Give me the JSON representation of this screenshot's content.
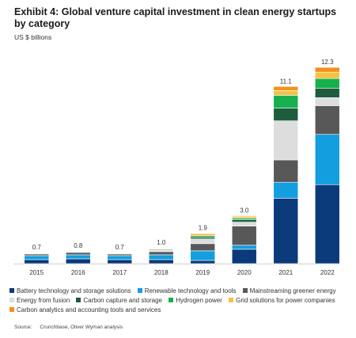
{
  "header": {
    "title": "Exhibit 4: Global venture capital investment in clean energy startups by category",
    "unit": "US $ billions"
  },
  "source": {
    "label": "Source:",
    "text": "Crunchbase, Oliver Wyman analysis"
  },
  "chart_data": {
    "type": "bar",
    "stacked": true,
    "title": "Exhibit 4: Global venture capital investment in clean energy startups by category",
    "ylabel": "US $ billions",
    "ylim": [
      0,
      13
    ],
    "grid": false,
    "legend_position": "bottom",
    "categories": [
      "2015",
      "2016",
      "2017",
      "2018",
      "2019",
      "2020",
      "2021",
      "2022"
    ],
    "totals": [
      "0.7",
      "0.8",
      "0.7",
      "1.0",
      "1.9",
      "3.0",
      "11.1",
      "12.3"
    ],
    "series": [
      {
        "name": "Battery technology and storage solutions",
        "color": "#0a3a7a",
        "values": [
          0.25,
          0.3,
          0.25,
          0.25,
          0.2,
          0.9,
          4.1,
          4.95
        ]
      },
      {
        "name": "Renewable technology and tools",
        "color": "#139ee0",
        "values": [
          0.25,
          0.25,
          0.25,
          0.3,
          0.6,
          0.25,
          1.0,
          3.15
        ]
      },
      {
        "name": "Mainstreaming greener energy",
        "color": "#585858",
        "values": [
          0.1,
          0.15,
          0.1,
          0.2,
          0.45,
          1.2,
          1.4,
          1.8
        ]
      },
      {
        "name": "Energy from fusion",
        "color": "#dddddd",
        "values": [
          0.05,
          0.05,
          0.05,
          0.1,
          0.3,
          0.25,
          2.45,
          0.5
        ]
      },
      {
        "name": "Carbon capture and storage",
        "color": "#1e5c3e",
        "values": [
          0.02,
          0.03,
          0.02,
          0.05,
          0.1,
          0.15,
          0.8,
          0.6
        ]
      },
      {
        "name": "Hydrogen power",
        "color": "#16b04e",
        "values": [
          0.01,
          0.01,
          0.01,
          0.04,
          0.1,
          0.1,
          0.8,
          0.6
        ]
      },
      {
        "name": "Grid solutions for power companies",
        "color": "#f6c243",
        "values": [
          0.01,
          0.01,
          0.01,
          0.03,
          0.1,
          0.1,
          0.3,
          0.4
        ]
      },
      {
        "name": "Carbon analytics and accounting tools and services",
        "color": "#f2911b",
        "values": [
          0.01,
          0.0,
          0.01,
          0.03,
          0.05,
          0.05,
          0.25,
          0.3
        ]
      }
    ]
  }
}
